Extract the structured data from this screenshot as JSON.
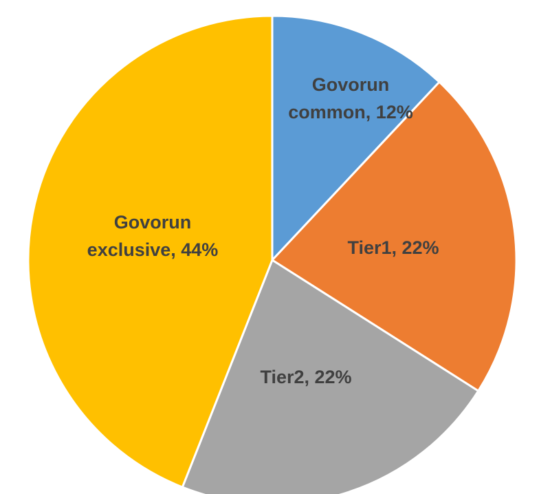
{
  "chart_data": {
    "type": "pie",
    "values": [
      12,
      22,
      22,
      44
    ],
    "value_labels": [
      "Govorun common, 12%",
      "Tier1, 22%",
      "Tier2, 22%",
      "Govorun exclusive, 44%"
    ],
    "colors": [
      "#5b9bd5",
      "#ed7d31",
      "#a5a5a5",
      "#ffc000"
    ]
  }
}
